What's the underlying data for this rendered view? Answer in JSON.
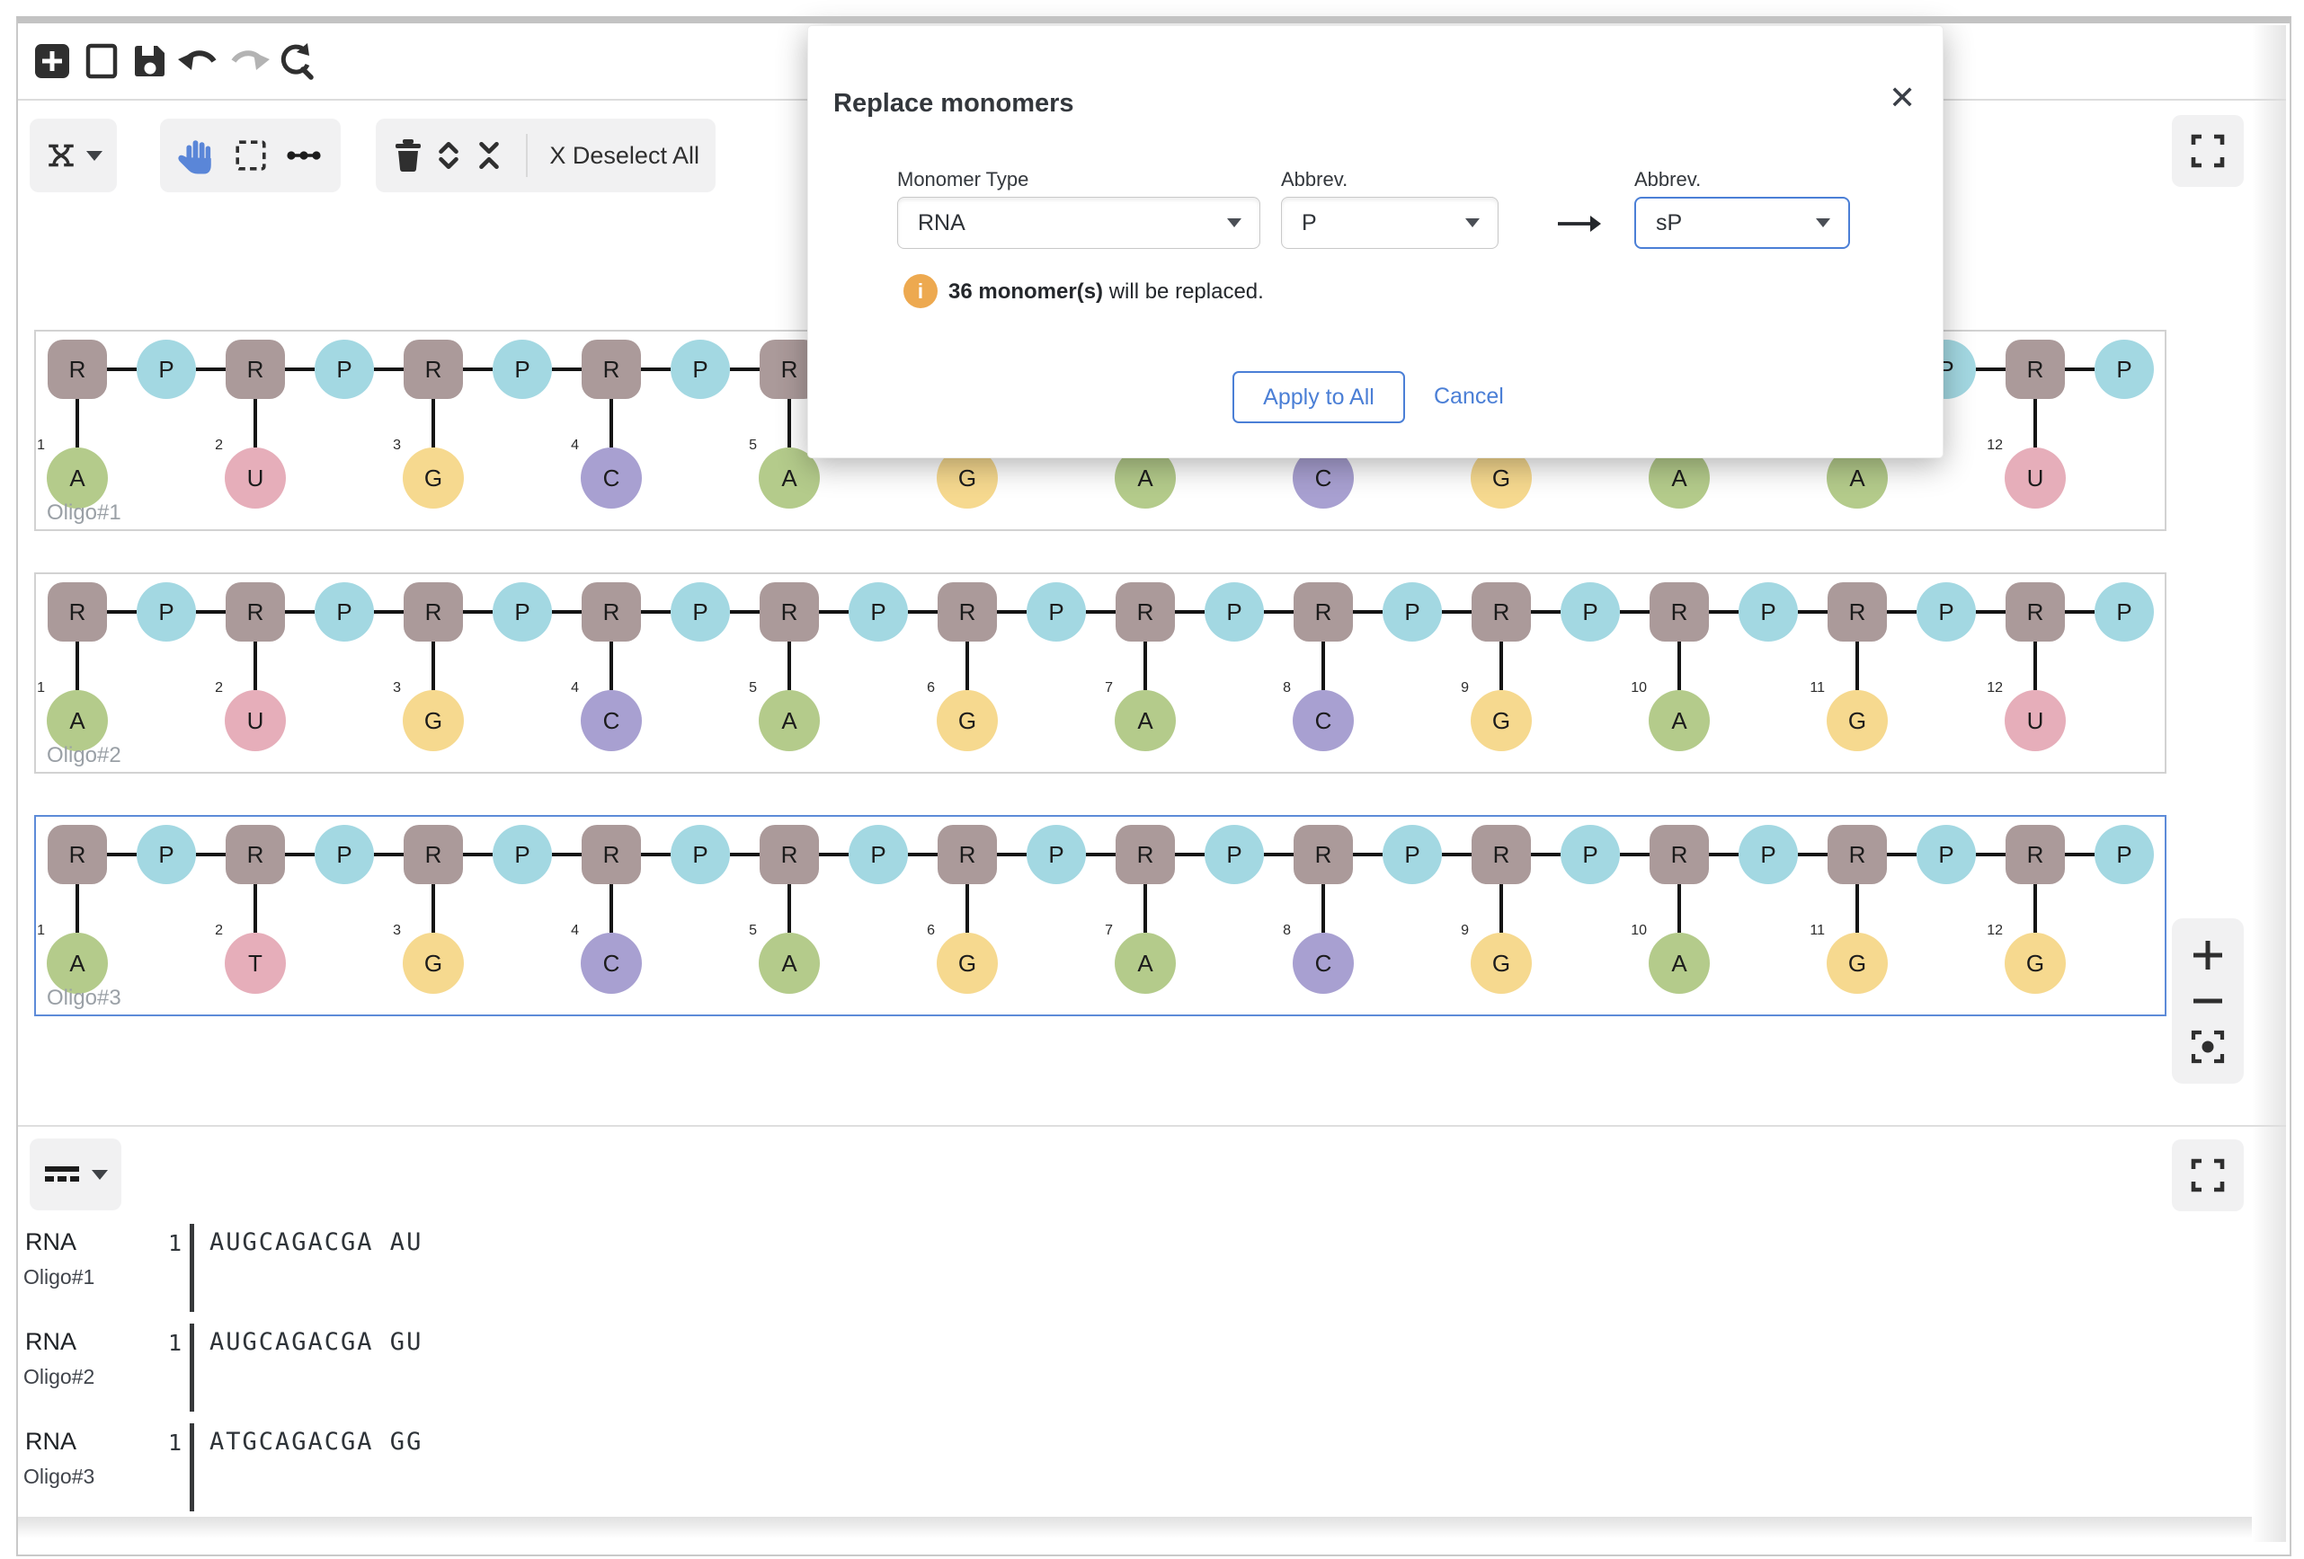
{
  "toolbar_top": {
    "icons": [
      "new-document-icon",
      "clear-canvas-icon",
      "save-icon",
      "undo-icon",
      "redo-icon",
      "reset-view-icon"
    ],
    "redo_disabled": true
  },
  "toolbar_tools": {
    "layout_mode_icon": "dna-layout-icon",
    "tools": [
      "hand-icon",
      "rectangle-select-icon",
      "bond-tool-icon"
    ],
    "edit_icons": [
      "trash-icon",
      "expand-icon",
      "collapse-icon"
    ],
    "deselect_icon": "X",
    "deselect_label": "Deselect All"
  },
  "dialog": {
    "title": "Replace monomers",
    "close_icon": "✕",
    "fields": [
      {
        "label": "Monomer Type",
        "value": "RNA"
      },
      {
        "label": "Abbrev.",
        "value": "P"
      },
      {
        "label": "Abbrev.",
        "value": "sP"
      }
    ],
    "info_bold": "36 monomer(s)",
    "info_rest": " will be replaced.",
    "apply_label": "Apply to All",
    "cancel_label": "Cancel"
  },
  "monomer_colors": {
    "R": "#AB9A9A",
    "P": "#A3D8E2",
    "A": "#B4CB8B",
    "U": "#E6AEBA",
    "T": "#E6AEBA",
    "G": "#F6D98F",
    "C": "#A8A0D1"
  },
  "accent_color": "#4b7fd6",
  "canvas": {
    "sugar_label": "R",
    "phosphate_label": "P",
    "chains": [
      {
        "name": "Oligo#1",
        "selected": false,
        "bases": [
          "A",
          "U",
          "G",
          "C",
          "A",
          "G",
          "A",
          "C",
          "G",
          "A",
          "A",
          "U"
        ]
      },
      {
        "name": "Oligo#2",
        "selected": false,
        "bases": [
          "A",
          "U",
          "G",
          "C",
          "A",
          "G",
          "A",
          "C",
          "G",
          "A",
          "G",
          "U"
        ]
      },
      {
        "name": "Oligo#3",
        "selected": true,
        "bases": [
          "A",
          "T",
          "G",
          "C",
          "A",
          "G",
          "A",
          "C",
          "G",
          "A",
          "G",
          "G"
        ]
      }
    ]
  },
  "sequence_panel": {
    "rows": [
      {
        "type": "RNA",
        "name": "Oligo#1",
        "index": "1",
        "sequence": "AUGCAGACGA AU"
      },
      {
        "type": "RNA",
        "name": "Oligo#2",
        "index": "1",
        "sequence": "AUGCAGACGA GU"
      },
      {
        "type": "RNA",
        "name": "Oligo#3",
        "index": "1",
        "sequence": "ATGCAGACGA GG"
      }
    ]
  }
}
